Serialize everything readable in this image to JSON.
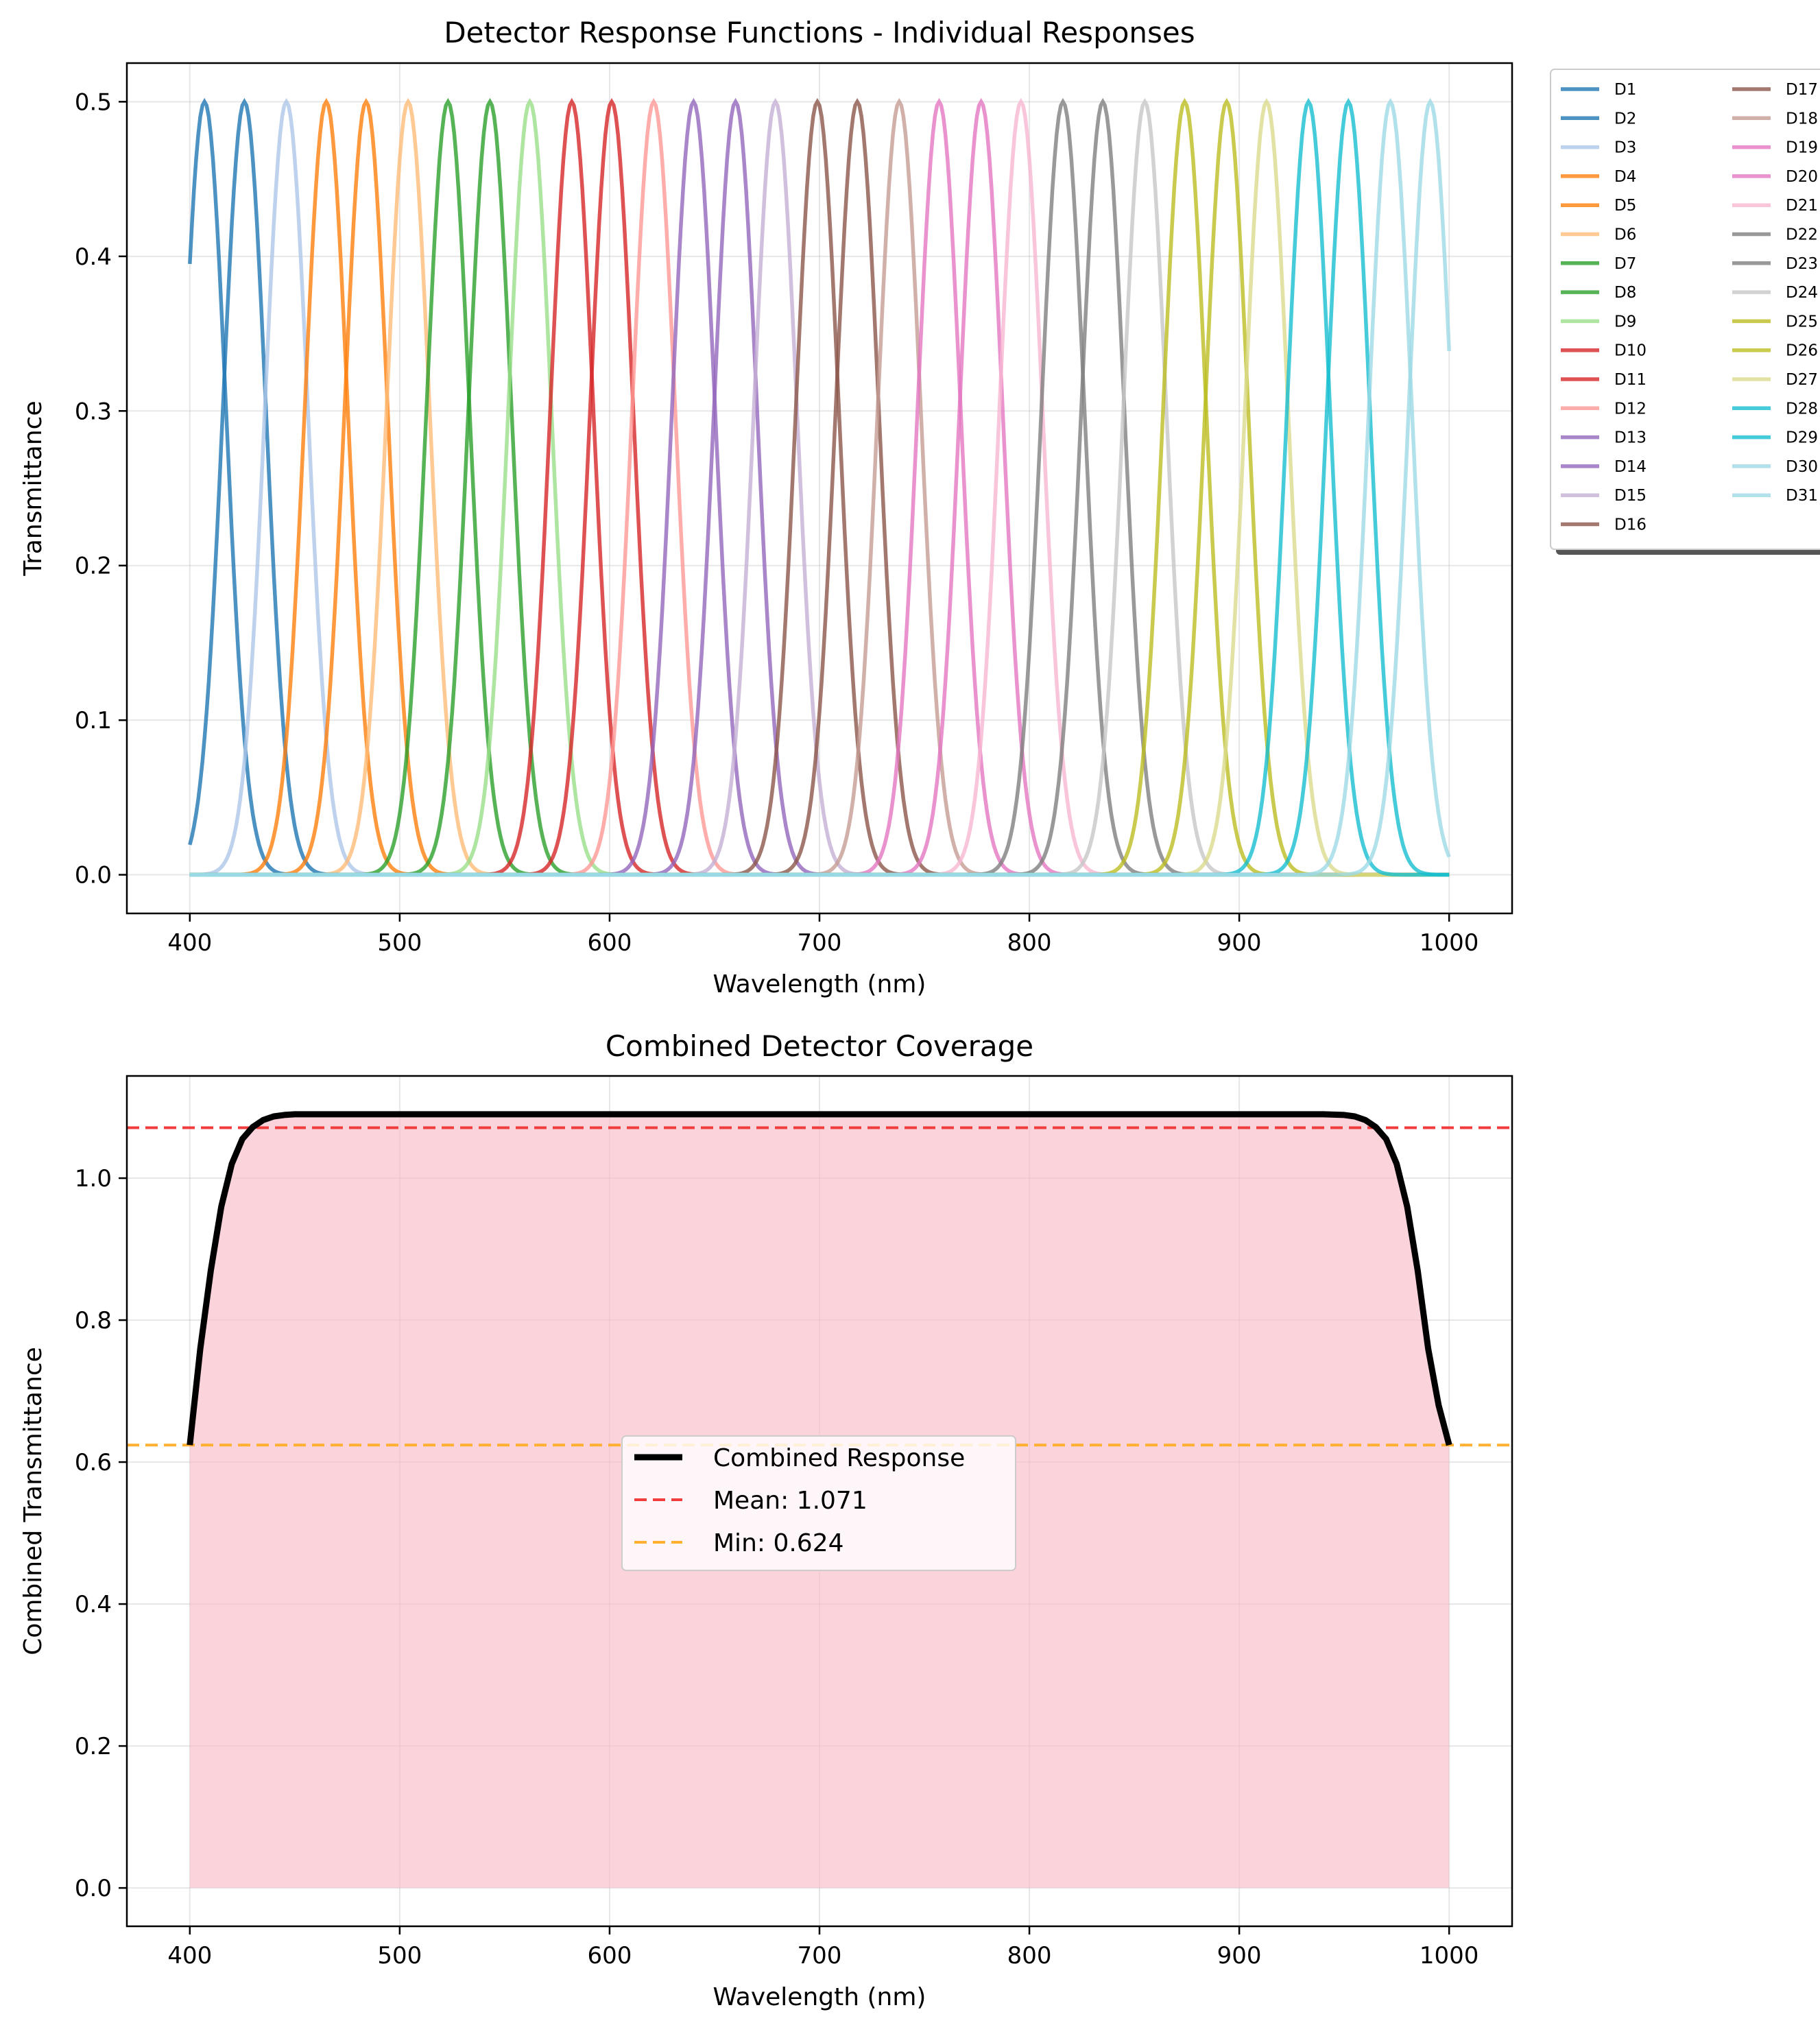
{
  "colors": {
    "tab20": [
      "#1f77b4",
      "#1f77b4",
      "#aec7e8",
      "#ff7f0e",
      "#ff7f0e",
      "#ffbb78",
      "#2ca02c",
      "#2ca02c",
      "#98df8a",
      "#d62728",
      "#d62728",
      "#ff9896",
      "#9467bd",
      "#9467bd",
      "#c5b0d5",
      "#8c564b",
      "#8c564b",
      "#c49c94",
      "#e377c2",
      "#e377c2",
      "#f7b6d2",
      "#7f7f7f",
      "#7f7f7f",
      "#c7c7c7",
      "#bcbd22",
      "#bcbd22",
      "#dbdb8d",
      "#17becf",
      "#17becf",
      "#9edae5",
      "#9edae5"
    ],
    "combined": "#000000",
    "fill": "#f8bbc8",
    "mean_line": "#f03c3c",
    "min_line": "#ffb030"
  },
  "chart_data": [
    {
      "type": "line",
      "title": "Detector Response Functions - Individual Responses",
      "xlabel": "Wavelength (nm)",
      "ylabel": "Transmittance",
      "xlim": [
        370,
        1030
      ],
      "ylim": [
        -0.025,
        0.525
      ],
      "xticks": [
        400,
        500,
        600,
        700,
        800,
        900,
        1000
      ],
      "yticks": [
        0.0,
        0.1,
        0.2,
        0.3,
        0.4,
        0.5
      ],
      "ytick_labels": [
        "0.0",
        "0.1",
        "0.2",
        "0.3",
        "0.4",
        "0.5"
      ],
      "grid": true,
      "legend": "outside-right, 2 columns",
      "x_range": [
        400,
        1000
      ],
      "peak_value": 0.5,
      "sigma_nm": 10.2,
      "series": [
        {
          "name": "D1",
          "center": 407
        },
        {
          "name": "D2",
          "center": 426
        },
        {
          "name": "D3",
          "center": 446
        },
        {
          "name": "D4",
          "center": 465
        },
        {
          "name": "D5",
          "center": 484
        },
        {
          "name": "D6",
          "center": 504
        },
        {
          "name": "D7",
          "center": 523
        },
        {
          "name": "D8",
          "center": 543
        },
        {
          "name": "D9",
          "center": 562
        },
        {
          "name": "D10",
          "center": 582
        },
        {
          "name": "D11",
          "center": 601
        },
        {
          "name": "D12",
          "center": 621
        },
        {
          "name": "D13",
          "center": 640
        },
        {
          "name": "D14",
          "center": 660
        },
        {
          "name": "D15",
          "center": 679
        },
        {
          "name": "D16",
          "center": 699
        },
        {
          "name": "D17",
          "center": 718
        },
        {
          "name": "D18",
          "center": 738
        },
        {
          "name": "D19",
          "center": 757
        },
        {
          "name": "D20",
          "center": 777
        },
        {
          "name": "D21",
          "center": 796
        },
        {
          "name": "D22",
          "center": 816
        },
        {
          "name": "D23",
          "center": 835
        },
        {
          "name": "D24",
          "center": 855
        },
        {
          "name": "D25",
          "center": 874
        },
        {
          "name": "D26",
          "center": 894
        },
        {
          "name": "D27",
          "center": 913
        },
        {
          "name": "D28",
          "center": 933
        },
        {
          "name": "D29",
          "center": 952
        },
        {
          "name": "D30",
          "center": 972
        },
        {
          "name": "D31",
          "center": 991
        }
      ]
    },
    {
      "type": "area",
      "title": "Combined Detector Coverage",
      "xlabel": "Wavelength (nm)",
      "ylabel": "Combined Transmittance",
      "xlim": [
        370,
        1030
      ],
      "ylim": [
        -0.054,
        1.144
      ],
      "xticks": [
        400,
        500,
        600,
        700,
        800,
        900,
        1000
      ],
      "yticks": [
        0.0,
        0.2,
        0.4,
        0.6,
        0.8,
        1.0
      ],
      "ytick_labels": [
        "0.0",
        "0.2",
        "0.4",
        "0.6",
        "0.8",
        "1.0"
      ],
      "grid": true,
      "legend": "center",
      "x": [
        400,
        405,
        410,
        415,
        420,
        425,
        430,
        435,
        440,
        445,
        450,
        460,
        480,
        500,
        550,
        600,
        650,
        700,
        750,
        800,
        850,
        900,
        940,
        950,
        955,
        960,
        965,
        970,
        975,
        980,
        985,
        990,
        995,
        1000
      ],
      "y": [
        0.624,
        0.76,
        0.87,
        0.96,
        1.02,
        1.055,
        1.072,
        1.082,
        1.087,
        1.089,
        1.09,
        1.09,
        1.09,
        1.09,
        1.09,
        1.09,
        1.09,
        1.09,
        1.09,
        1.09,
        1.09,
        1.09,
        1.09,
        1.089,
        1.087,
        1.082,
        1.072,
        1.055,
        1.02,
        0.96,
        0.87,
        0.76,
        0.68,
        0.624
      ],
      "series_names": {
        "combined": "Combined Response",
        "mean": "Mean: 1.071",
        "min": "Min: 0.624"
      },
      "mean": 1.071,
      "min": 0.624
    }
  ]
}
